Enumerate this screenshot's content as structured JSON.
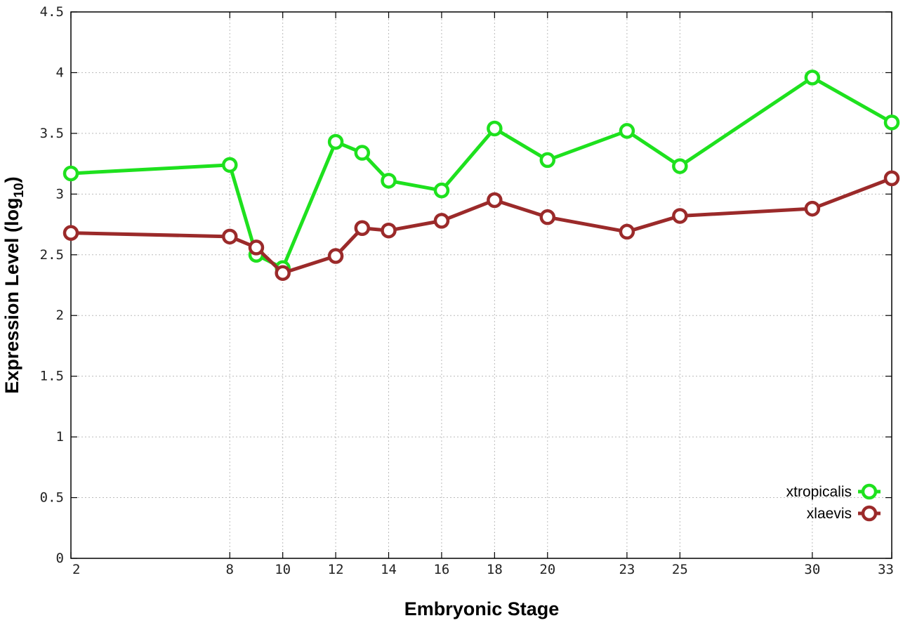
{
  "chart_data": {
    "type": "line",
    "xlabel": "Embryonic Stage",
    "ylabel": "Expression Level (log",
    "ylabel_subscript": "10",
    "ylabel_suffix": ")",
    "x_ticks": [
      "2",
      "8",
      "10",
      "12",
      "14",
      "16",
      "18",
      "20",
      "23",
      "25",
      "30",
      "33"
    ],
    "y_ticks": [
      "0",
      "0.5",
      "1",
      "1.5",
      "2",
      "2.5",
      "3",
      "3.5",
      "4",
      "4.5"
    ],
    "ylim": [
      0,
      4.5
    ],
    "grid": true,
    "legend_position": "bottom-right",
    "x": [
      2,
      8,
      9,
      10,
      12,
      13,
      14,
      16,
      18,
      20,
      23,
      25,
      30,
      33
    ],
    "series": [
      {
        "name": "xtropicalis",
        "color": "#1ee11e",
        "values": [
          3.17,
          3.24,
          2.5,
          2.39,
          3.43,
          3.34,
          3.11,
          3.03,
          3.54,
          3.28,
          3.52,
          3.23,
          3.96,
          3.59
        ]
      },
      {
        "name": "xlaevis",
        "color": "#9b2a2a",
        "values": [
          2.68,
          2.65,
          2.56,
          2.35,
          2.49,
          2.72,
          2.7,
          2.78,
          2.95,
          2.81,
          2.69,
          2.82,
          2.88,
          3.13
        ]
      }
    ]
  }
}
